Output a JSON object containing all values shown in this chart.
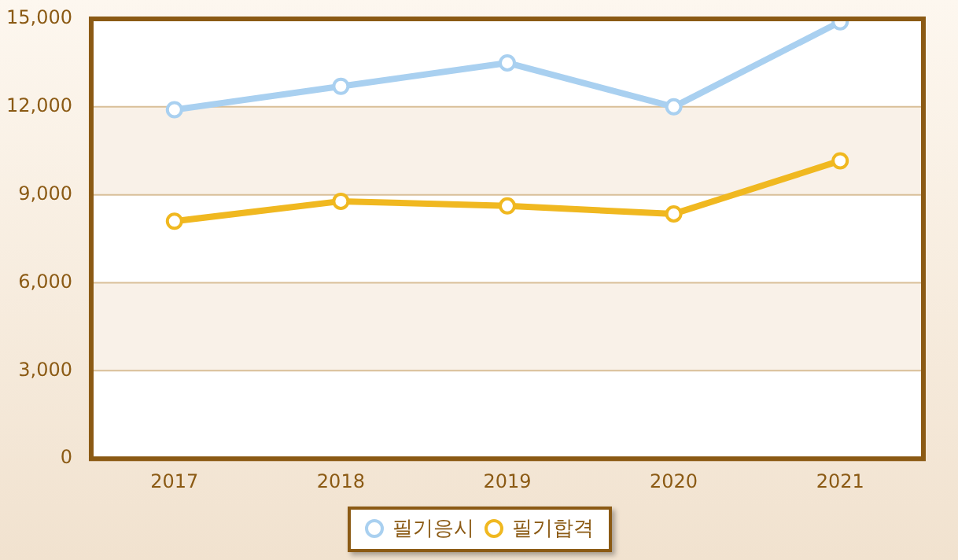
{
  "chart_data": {
    "type": "line",
    "categories": [
      "2017",
      "2018",
      "2019",
      "2020",
      "2021"
    ],
    "series": [
      {
        "name": "필기응시",
        "color": "#a9d0f0",
        "values": [
          11900,
          12700,
          13500,
          12000,
          14900
        ]
      },
      {
        "name": "필기합격",
        "color": "#f0b820",
        "values": [
          8100,
          8780,
          8620,
          8350,
          10160
        ]
      }
    ],
    "ylim": [
      0,
      15000
    ],
    "yticks": [
      0,
      {
        "value": 3000,
        "label": "3,000"
      },
      {
        "value": 6000,
        "label": "6,000"
      },
      {
        "value": 9000,
        "label": "9,000"
      },
      {
        "value": 12000,
        "label": "12,000"
      },
      {
        "value": 15000,
        "label": "15,000"
      }
    ],
    "bands": [
      {
        "axis": "y",
        "from": 3000,
        "to": 6000,
        "color": "#f9f1e8"
      },
      {
        "axis": "y",
        "from": 9000,
        "to": 12000,
        "color": "#f9f1e8"
      }
    ],
    "grid": "y",
    "legend": "bottom",
    "marker": "circle",
    "line_style": "solid"
  }
}
